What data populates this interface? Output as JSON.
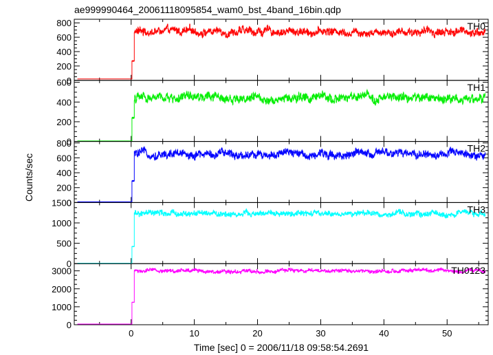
{
  "chart_data": {
    "type": "line",
    "title": "ae999990464_20061118095854_wam0_bst_4band_16bin.qdp",
    "xlabel": "Time [sec] 0 = 2006/11/18 09:58:54.2691",
    "ylabel": "Counts/sec",
    "xlim": [
      -9,
      56.5
    ],
    "x_ticks": [
      0,
      10,
      20,
      30,
      40,
      50
    ],
    "x_tick_labels": [
      "0",
      "10",
      "20",
      "30",
      "40",
      "50"
    ],
    "grid": false,
    "event_time": 0.1,
    "panels": [
      {
        "name": "TH0",
        "color": "#ff0000",
        "ylim": [
          0,
          850
        ],
        "yticks": [
          0,
          200,
          400,
          600,
          800
        ],
        "background": 20,
        "step": [
          0,
          270
        ],
        "plateau": 680,
        "noise": 55
      },
      {
        "name": "TH1",
        "color": "#00ee00",
        "ylim": [
          0,
          620
        ],
        "yticks": [
          0,
          200,
          400,
          600
        ],
        "background": 5,
        "step": [
          0,
          240
        ],
        "plateau": 440,
        "noise": 45
      },
      {
        "name": "TH2",
        "color": "#0000ff",
        "ylim": [
          0,
          820
        ],
        "yticks": [
          0,
          200,
          400,
          600,
          800
        ],
        "background": 10,
        "step": [
          0,
          290
        ],
        "plateau": 650,
        "noise": 55
      },
      {
        "name": "TH3",
        "color": "#00ffff",
        "ylim": [
          0,
          1500
        ],
        "yticks": [
          0,
          500,
          1000,
          1500
        ],
        "background": 10,
        "step": [
          0,
          420
        ],
        "plateau": 1220,
        "noise": 70
      },
      {
        "name": "TH0123",
        "color": "#ff00ff",
        "ylim": [
          0,
          3400
        ],
        "yticks": [
          0,
          1000,
          2000,
          3000
        ],
        "background": 40,
        "step": [
          0,
          1250
        ],
        "plateau": 3000,
        "noise": 110
      }
    ]
  }
}
